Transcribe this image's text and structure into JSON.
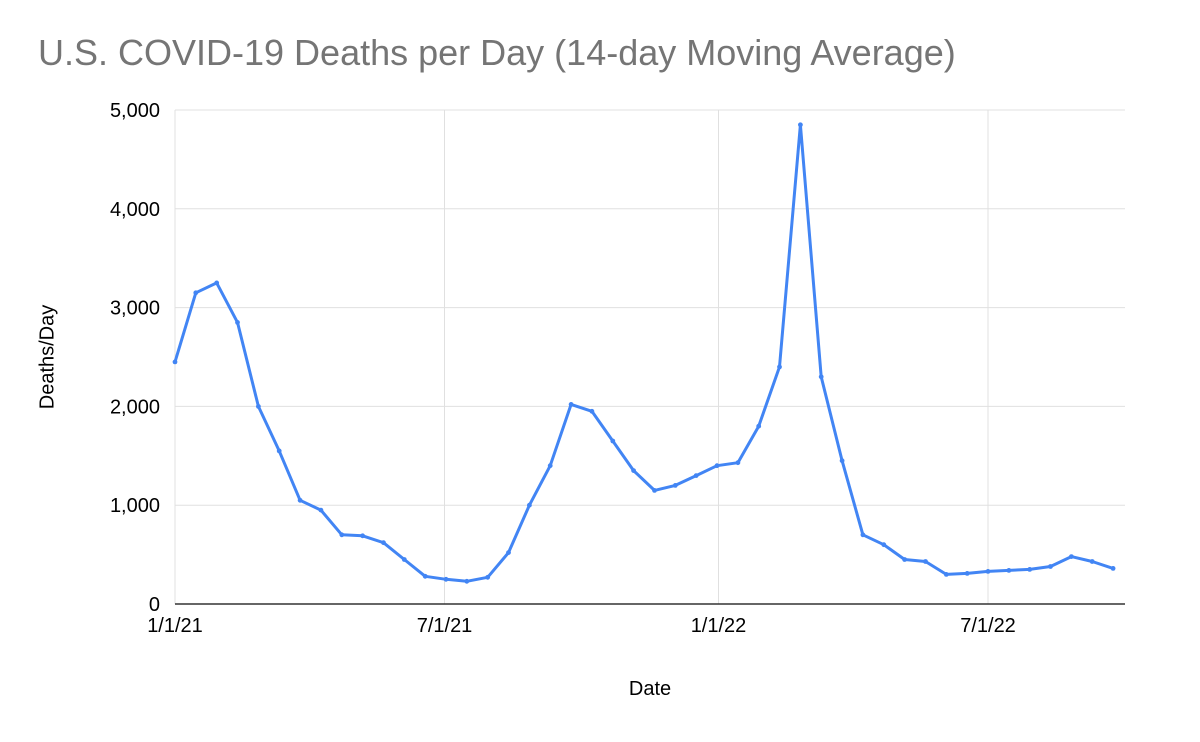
{
  "chart_data": {
    "type": "line",
    "title": "U.S. COVID-19 Deaths per Day (14-day Moving Average)",
    "xlabel": "Date",
    "ylabel": "Deaths/Day",
    "x_domain": [
      "1/1/21",
      "10/1/22"
    ],
    "ylim": [
      0,
      5000
    ],
    "y_ticks": [
      0,
      1000,
      2000,
      3000,
      4000,
      5000
    ],
    "y_tick_labels": [
      "0",
      "1,000",
      "2,000",
      "3,000",
      "4,000",
      "5,000"
    ],
    "x_ticks": [
      "1/1/21",
      "7/1/21",
      "1/1/22",
      "7/1/22"
    ],
    "grid": true,
    "legend": "none",
    "colors": {
      "line": "#4285f4",
      "title_text": "#757575",
      "axis_text": "#000000",
      "gridline": "#e0e0e0",
      "baseline": "#333333"
    },
    "series": [
      {
        "name": "Deaths/Day",
        "x": [
          "1/1/21",
          "1/15/21",
          "1/29/21",
          "2/12/21",
          "2/26/21",
          "3/12/21",
          "3/26/21",
          "4/9/21",
          "4/23/21",
          "5/7/21",
          "5/21/21",
          "6/4/21",
          "6/18/21",
          "7/2/21",
          "7/16/21",
          "7/30/21",
          "8/13/21",
          "8/27/21",
          "9/10/21",
          "9/24/21",
          "10/8/21",
          "10/22/21",
          "11/5/21",
          "11/19/21",
          "12/3/21",
          "12/17/21",
          "12/31/21",
          "1/14/22",
          "1/28/22",
          "2/11/22",
          "2/25/22",
          "3/11/22",
          "3/25/22",
          "4/8/22",
          "4/22/22",
          "5/6/22",
          "5/20/22",
          "6/3/22",
          "6/17/22",
          "7/1/22",
          "7/15/22",
          "7/29/22",
          "8/12/22",
          "8/26/22",
          "9/9/22",
          "9/23/22"
        ],
        "values": [
          2450,
          3150,
          3250,
          2850,
          2000,
          1550,
          1050,
          950,
          700,
          690,
          620,
          450,
          280,
          250,
          230,
          270,
          520,
          1000,
          1400,
          2020,
          1950,
          1650,
          1350,
          1150,
          1200,
          1300,
          1400,
          1430,
          1800,
          2400,
          4850,
          2300,
          1450,
          700,
          600,
          450,
          430,
          300,
          310,
          330,
          340,
          350,
          380,
          480,
          430,
          360
        ]
      }
    ]
  }
}
